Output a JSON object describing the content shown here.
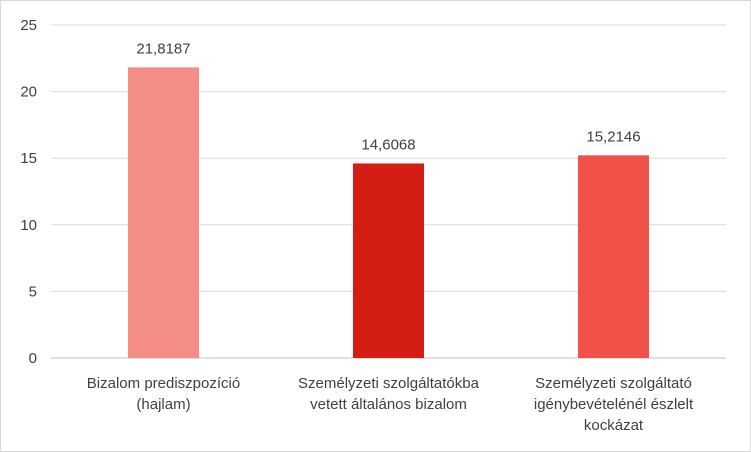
{
  "chart_data": {
    "type": "bar",
    "categories": [
      [
        "Bizalom prediszpozíció",
        "(hajlam)"
      ],
      [
        "Személyzeti szolgáltatókba",
        "vetett általános bizalom"
      ],
      [
        "Személyzeti szolgáltató",
        "igénybevételénél észlelt",
        "kockázat"
      ]
    ],
    "values": [
      21.8187,
      14.6068,
      15.2146
    ],
    "data_labels": [
      "21,8187",
      "14,6068",
      "15,2146"
    ],
    "colors": [
      "#f58d87",
      "#d41e14",
      "#f0524a"
    ],
    "ylim": [
      0,
      25
    ],
    "yticks": [
      0,
      5,
      10,
      15,
      20,
      25
    ],
    "grid": true,
    "title": "",
    "xlabel": "",
    "ylabel": ""
  }
}
